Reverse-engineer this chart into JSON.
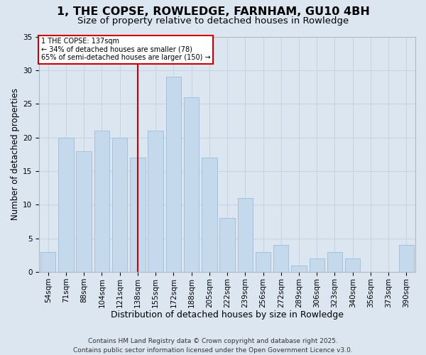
{
  "title1": "1, THE COPSE, ROWLEDGE, FARNHAM, GU10 4BH",
  "title2": "Size of property relative to detached houses in Rowledge",
  "xlabel": "Distribution of detached houses by size in Rowledge",
  "ylabel": "Number of detached properties",
  "categories": [
    "54sqm",
    "71sqm",
    "88sqm",
    "104sqm",
    "121sqm",
    "138sqm",
    "155sqm",
    "172sqm",
    "188sqm",
    "205sqm",
    "222sqm",
    "239sqm",
    "256sqm",
    "272sqm",
    "289sqm",
    "306sqm",
    "323sqm",
    "340sqm",
    "356sqm",
    "373sqm",
    "390sqm"
  ],
  "values": [
    3,
    20,
    18,
    21,
    20,
    17,
    21,
    29,
    26,
    17,
    8,
    11,
    3,
    4,
    1,
    2,
    3,
    2,
    0,
    0,
    4
  ],
  "bar_color": "#c5d9ed",
  "bar_edge_color": "#a0bcd4",
  "highlight_bar_index": 5,
  "highlight_color": "#cc0000",
  "annotation_lines": [
    "1 THE COPSE: 137sqm",
    "← 34% of detached houses are smaller (78)",
    "65% of semi-detached houses are larger (150) →"
  ],
  "annotation_box_color": "#ffffff",
  "annotation_box_edge": "#cc0000",
  "ylim": [
    0,
    35
  ],
  "yticks": [
    0,
    5,
    10,
    15,
    20,
    25,
    30,
    35
  ],
  "grid_color": "#c8d4e4",
  "background_color": "#dce6f0",
  "footer": "Contains HM Land Registry data © Crown copyright and database right 2025.\nContains public sector information licensed under the Open Government Licence v3.0.",
  "title1_fontsize": 11.5,
  "title2_fontsize": 9.5,
  "xlabel_fontsize": 9,
  "ylabel_fontsize": 8.5,
  "tick_fontsize": 7.5,
  "footer_fontsize": 6.5
}
